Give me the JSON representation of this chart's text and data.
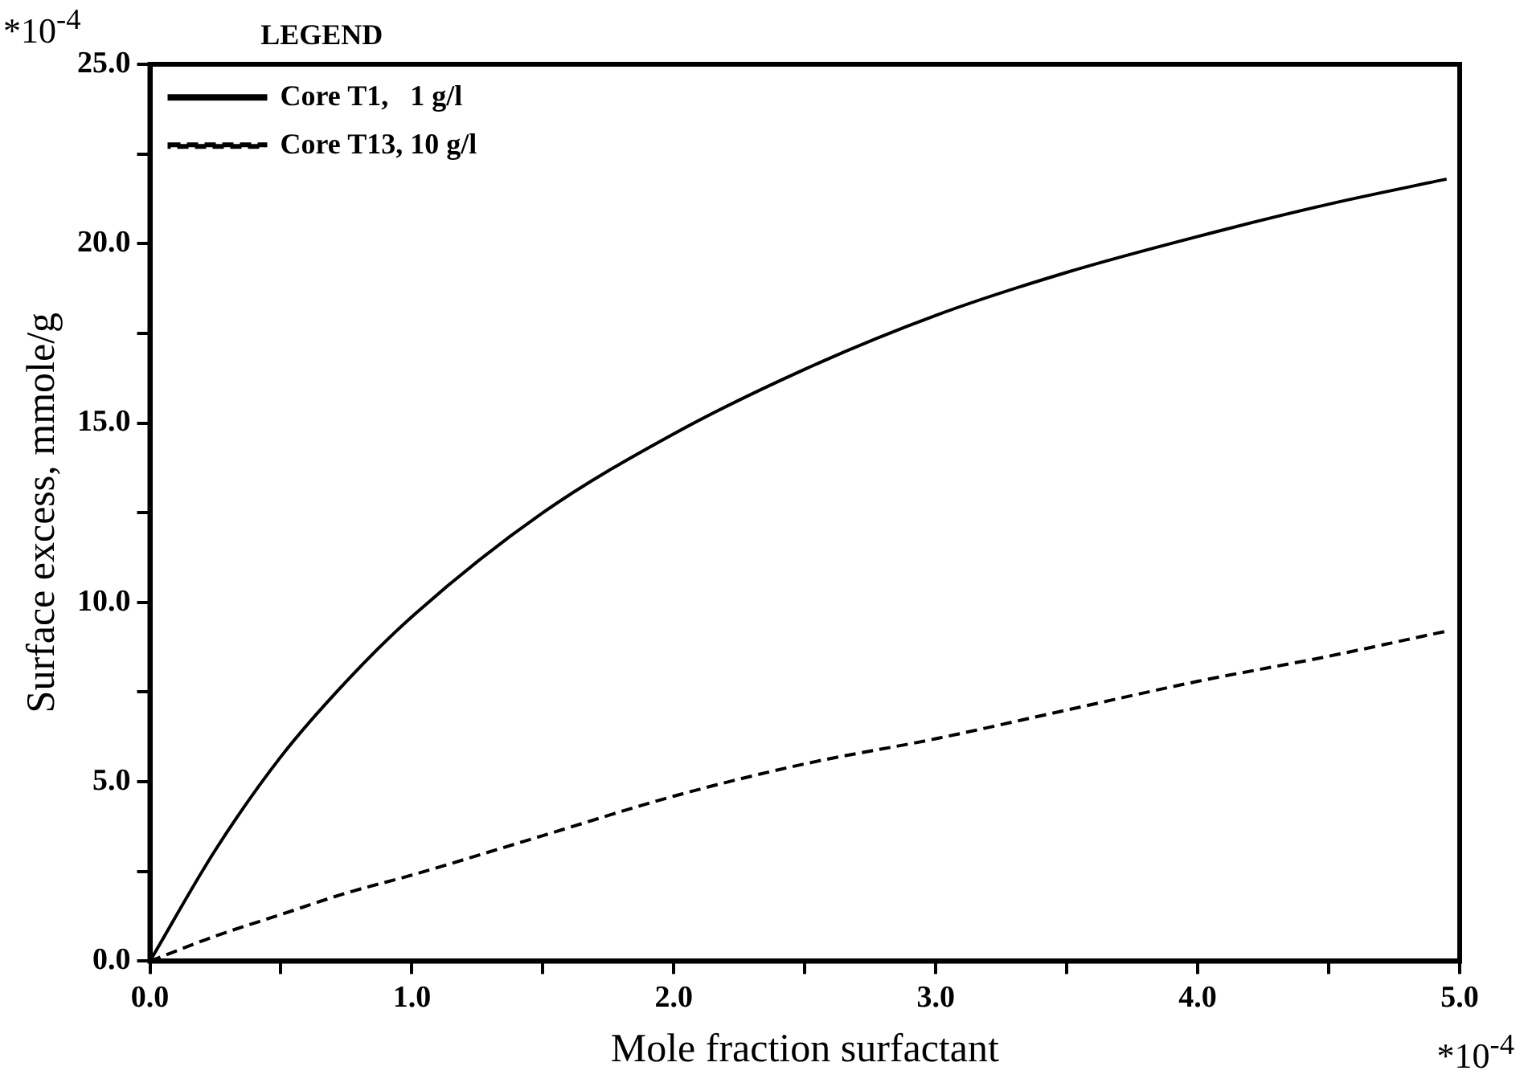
{
  "chart_data": {
    "type": "line",
    "xlabel": "Mole fraction surfactant",
    "ylabel": "Surface excess, mmole/g",
    "legend_title": "LEGEND",
    "annotations": [
      "*10$^{-4}$",
      "*10$^{-4}$"
    ],
    "x": [
      0,
      0.25,
      0.5,
      0.75,
      1,
      1.5,
      2,
      2.5,
      3,
      3.5,
      4,
      4.5,
      4.95
    ],
    "series": [
      {
        "name": "Core T1,   1 g/l",
        "color": "#000000",
        "line_style": "solid",
        "values": [
          0,
          3.1,
          5.7,
          7.8,
          9.6,
          12.5,
          14.7,
          16.5,
          18.0,
          19.2,
          20.2,
          21.1,
          21.8
        ]
      },
      {
        "name": "Core T13, 10 g/l",
        "color": "#000000",
        "line_style": "dashed",
        "values": [
          0,
          0.7,
          1.3,
          1.9,
          2.4,
          3.5,
          4.6,
          5.5,
          6.2,
          7.0,
          7.8,
          8.5,
          9.2
        ]
      }
    ],
    "xlim": [
      0,
      5
    ],
    "ylim": [
      0,
      25
    ],
    "xticks": [
      {
        "value": 0,
        "label": "0.0"
      },
      {
        "value": 0.5,
        "label": null
      },
      {
        "value": 1,
        "label": "1.0"
      },
      {
        "value": 1.5,
        "label": null
      },
      {
        "value": 2,
        "label": "2.0"
      },
      {
        "value": 2.5,
        "label": null
      },
      {
        "value": 3,
        "label": "3.0"
      },
      {
        "value": 3.5,
        "label": null
      },
      {
        "value": 4,
        "label": "4.0"
      },
      {
        "value": 4.5,
        "label": null
      },
      {
        "value": 5,
        "label": "5.0"
      }
    ],
    "yticks": [
      {
        "value": 0,
        "label": "0.0"
      },
      {
        "value": 2.5,
        "label": null
      },
      {
        "value": 5,
        "label": "5.0"
      },
      {
        "value": 7.5,
        "label": null
      },
      {
        "value": 10,
        "label": "10.0"
      },
      {
        "value": 12.5,
        "label": null
      },
      {
        "value": 15,
        "label": "15.0"
      },
      {
        "value": 17.5,
        "label": null
      },
      {
        "value": 20,
        "label": "20.0"
      },
      {
        "value": 22.5,
        "label": null
      },
      {
        "value": 25,
        "label": "25.0"
      }
    ],
    "grid": false,
    "legend": "top left",
    "marker": "none"
  }
}
